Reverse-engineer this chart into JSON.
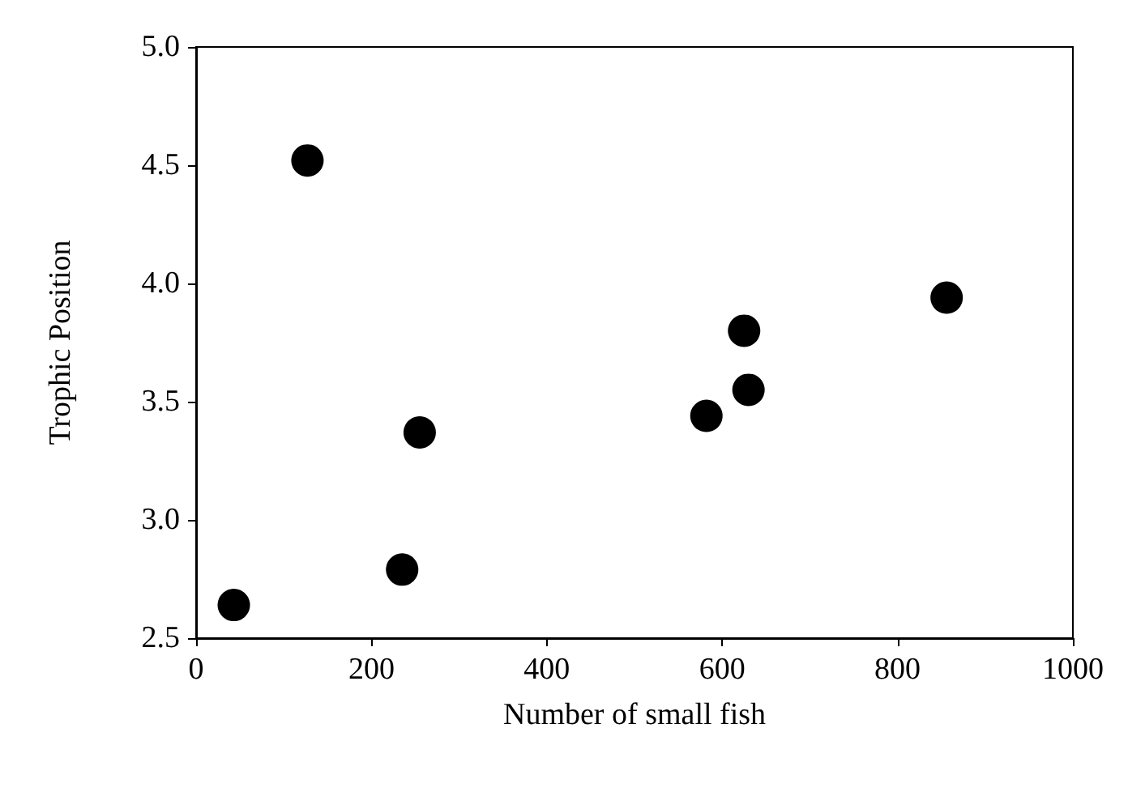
{
  "chart_data": {
    "type": "scatter",
    "xlabel": "Number of small fish",
    "ylabel": "Trophic Position",
    "x": [
      43,
      127,
      235,
      255,
      582,
      625,
      630,
      856
    ],
    "values": [
      2.64,
      4.52,
      2.79,
      3.37,
      3.44,
      3.8,
      3.55,
      3.94
    ],
    "color": "#000000",
    "marker": "circle",
    "xlim": [
      0,
      1000
    ],
    "xticks": [
      0,
      200,
      400,
      600,
      800,
      1000
    ],
    "ylim": [
      2.5,
      5
    ],
    "yticks": [
      {
        "value": 2.5,
        "label": "2.5"
      },
      {
        "value": 3,
        "label": "3.0"
      },
      {
        "value": 3.5,
        "label": "3.5"
      },
      {
        "value": 4,
        "label": "4.0"
      },
      {
        "value": 4.5,
        "label": "4.5"
      },
      {
        "value": 5,
        "label": "5.0"
      }
    ],
    "grid": false
  }
}
